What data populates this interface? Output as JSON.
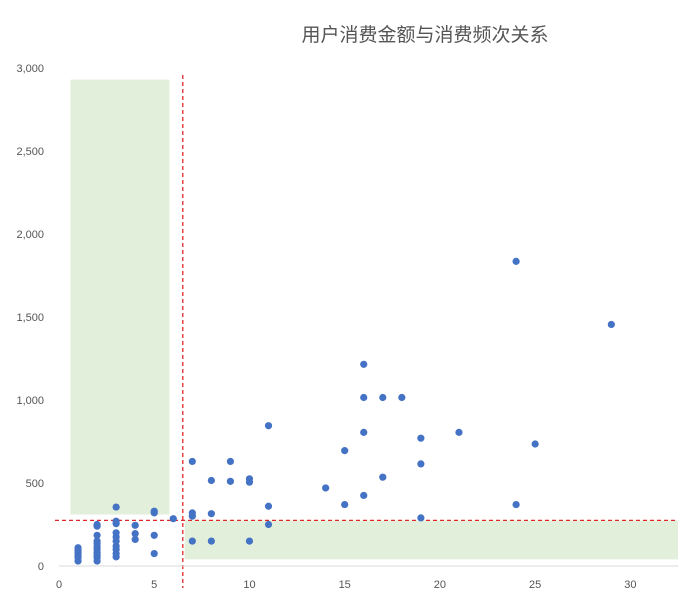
{
  "chart_data": {
    "type": "scatter",
    "title": "用户消费金额与消费频次关系",
    "xlabel": "",
    "ylabel": "",
    "xlim": [
      0,
      32.5
    ],
    "ylim": [
      0,
      3000
    ],
    "x_ticks": [
      0,
      5,
      10,
      15,
      20,
      25,
      30
    ],
    "y_ticks": [
      0,
      500,
      1000,
      1500,
      2000,
      2500,
      3000
    ],
    "y_tick_labels": [
      "0",
      "500",
      "1,000",
      "1,500",
      "2,000",
      "2,500",
      "3,000"
    ],
    "grid": false,
    "point_color": "#4472c4",
    "reference_line_color": "#e0282a",
    "highlight_color": "#e2efda",
    "reference_lines": {
      "x": 6.5,
      "y": 275
    },
    "highlight_regions": [
      {
        "x": [
          0.6,
          5.8
        ],
        "y": [
          310,
          2930
        ]
      },
      {
        "x": [
          6.6,
          32.5
        ],
        "y": [
          40,
          275
        ]
      }
    ],
    "points": [
      {
        "x": 1,
        "y": 30
      },
      {
        "x": 1,
        "y": 50
      },
      {
        "x": 1,
        "y": 65
      },
      {
        "x": 1,
        "y": 80
      },
      {
        "x": 1,
        "y": 95
      },
      {
        "x": 1,
        "y": 110
      },
      {
        "x": 2,
        "y": 30
      },
      {
        "x": 2,
        "y": 50
      },
      {
        "x": 2,
        "y": 65
      },
      {
        "x": 2,
        "y": 80
      },
      {
        "x": 2,
        "y": 100
      },
      {
        "x": 2,
        "y": 115
      },
      {
        "x": 2,
        "y": 135
      },
      {
        "x": 2,
        "y": 150
      },
      {
        "x": 2,
        "y": 185
      },
      {
        "x": 2,
        "y": 240
      },
      {
        "x": 2,
        "y": 250
      },
      {
        "x": 3,
        "y": 55
      },
      {
        "x": 3,
        "y": 75
      },
      {
        "x": 3,
        "y": 100
      },
      {
        "x": 3,
        "y": 120
      },
      {
        "x": 3,
        "y": 150
      },
      {
        "x": 3,
        "y": 175
      },
      {
        "x": 3,
        "y": 200
      },
      {
        "x": 3,
        "y": 255
      },
      {
        "x": 3,
        "y": 270
      },
      {
        "x": 3,
        "y": 355
      },
      {
        "x": 4,
        "y": 160
      },
      {
        "x": 4,
        "y": 195
      },
      {
        "x": 4,
        "y": 245
      },
      {
        "x": 5,
        "y": 75
      },
      {
        "x": 5,
        "y": 185
      },
      {
        "x": 5,
        "y": 320
      },
      {
        "x": 5,
        "y": 330
      },
      {
        "x": 6,
        "y": 285
      },
      {
        "x": 7,
        "y": 150
      },
      {
        "x": 7,
        "y": 300
      },
      {
        "x": 7,
        "y": 320
      },
      {
        "x": 7,
        "y": 630
      },
      {
        "x": 8,
        "y": 150
      },
      {
        "x": 8,
        "y": 315
      },
      {
        "x": 8,
        "y": 515
      },
      {
        "x": 9,
        "y": 510
      },
      {
        "x": 9,
        "y": 630
      },
      {
        "x": 10,
        "y": 150
      },
      {
        "x": 10,
        "y": 505
      },
      {
        "x": 10,
        "y": 525
      },
      {
        "x": 11,
        "y": 250
      },
      {
        "x": 11,
        "y": 360
      },
      {
        "x": 11,
        "y": 845
      },
      {
        "x": 14,
        "y": 470
      },
      {
        "x": 15,
        "y": 370
      },
      {
        "x": 15,
        "y": 695
      },
      {
        "x": 16,
        "y": 425
      },
      {
        "x": 16,
        "y": 805
      },
      {
        "x": 16,
        "y": 1015
      },
      {
        "x": 16,
        "y": 1215
      },
      {
        "x": 17,
        "y": 535
      },
      {
        "x": 17,
        "y": 1015
      },
      {
        "x": 18,
        "y": 1015
      },
      {
        "x": 19,
        "y": 290
      },
      {
        "x": 19,
        "y": 615
      },
      {
        "x": 19,
        "y": 770
      },
      {
        "x": 21,
        "y": 805
      },
      {
        "x": 24,
        "y": 370
      },
      {
        "x": 24,
        "y": 1835
      },
      {
        "x": 25,
        "y": 735
      },
      {
        "x": 29,
        "y": 1455
      }
    ]
  }
}
